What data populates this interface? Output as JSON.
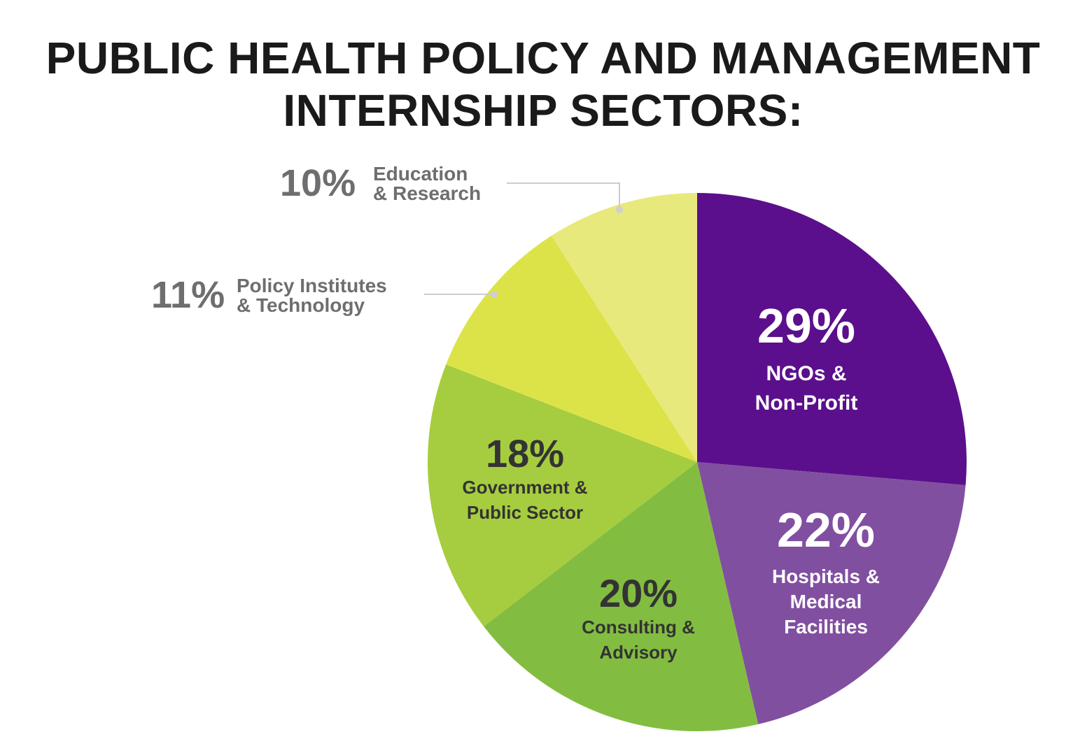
{
  "chart_data": {
    "type": "pie",
    "title": [
      "PUBLIC HEALTH POLICY AND MANAGEMENT",
      "INTERNSHIP SECTORS:"
    ],
    "slices": [
      {
        "percent": 29,
        "label": [
          "NGOs &",
          "Non-Profit"
        ],
        "value_label": "29%",
        "color": "#5b0f8c",
        "text_color": "#ffffff",
        "placement": "inside"
      },
      {
        "percent": 22,
        "label": [
          "Hospitals &",
          "Medical",
          "Facilities"
        ],
        "value_label": "22%",
        "color": "#814fa0",
        "text_color": "#ffffff",
        "placement": "inside"
      },
      {
        "percent": 20,
        "label": [
          "Consulting &",
          "Advisory"
        ],
        "value_label": "20%",
        "color": "#82bd41",
        "text_color": "#333333",
        "placement": "inside"
      },
      {
        "percent": 18,
        "label": [
          "Government &",
          "Public Sector"
        ],
        "value_label": "18%",
        "color": "#a6cd3f",
        "text_color": "#333333",
        "placement": "inside"
      },
      {
        "percent": 11,
        "label": [
          "Policy Institutes",
          "& Technology"
        ],
        "value_label": "11%",
        "color": "#dce349",
        "text_color": "#6d6e70",
        "placement": "outside"
      },
      {
        "percent": 10,
        "label": [
          "Education",
          "& Research"
        ],
        "value_label": "10%",
        "color": "#e8e97c",
        "text_color": "#6d6e70",
        "placement": "outside"
      }
    ],
    "start": "12 o'clock",
    "direction": "clockwise",
    "legend": "none"
  }
}
